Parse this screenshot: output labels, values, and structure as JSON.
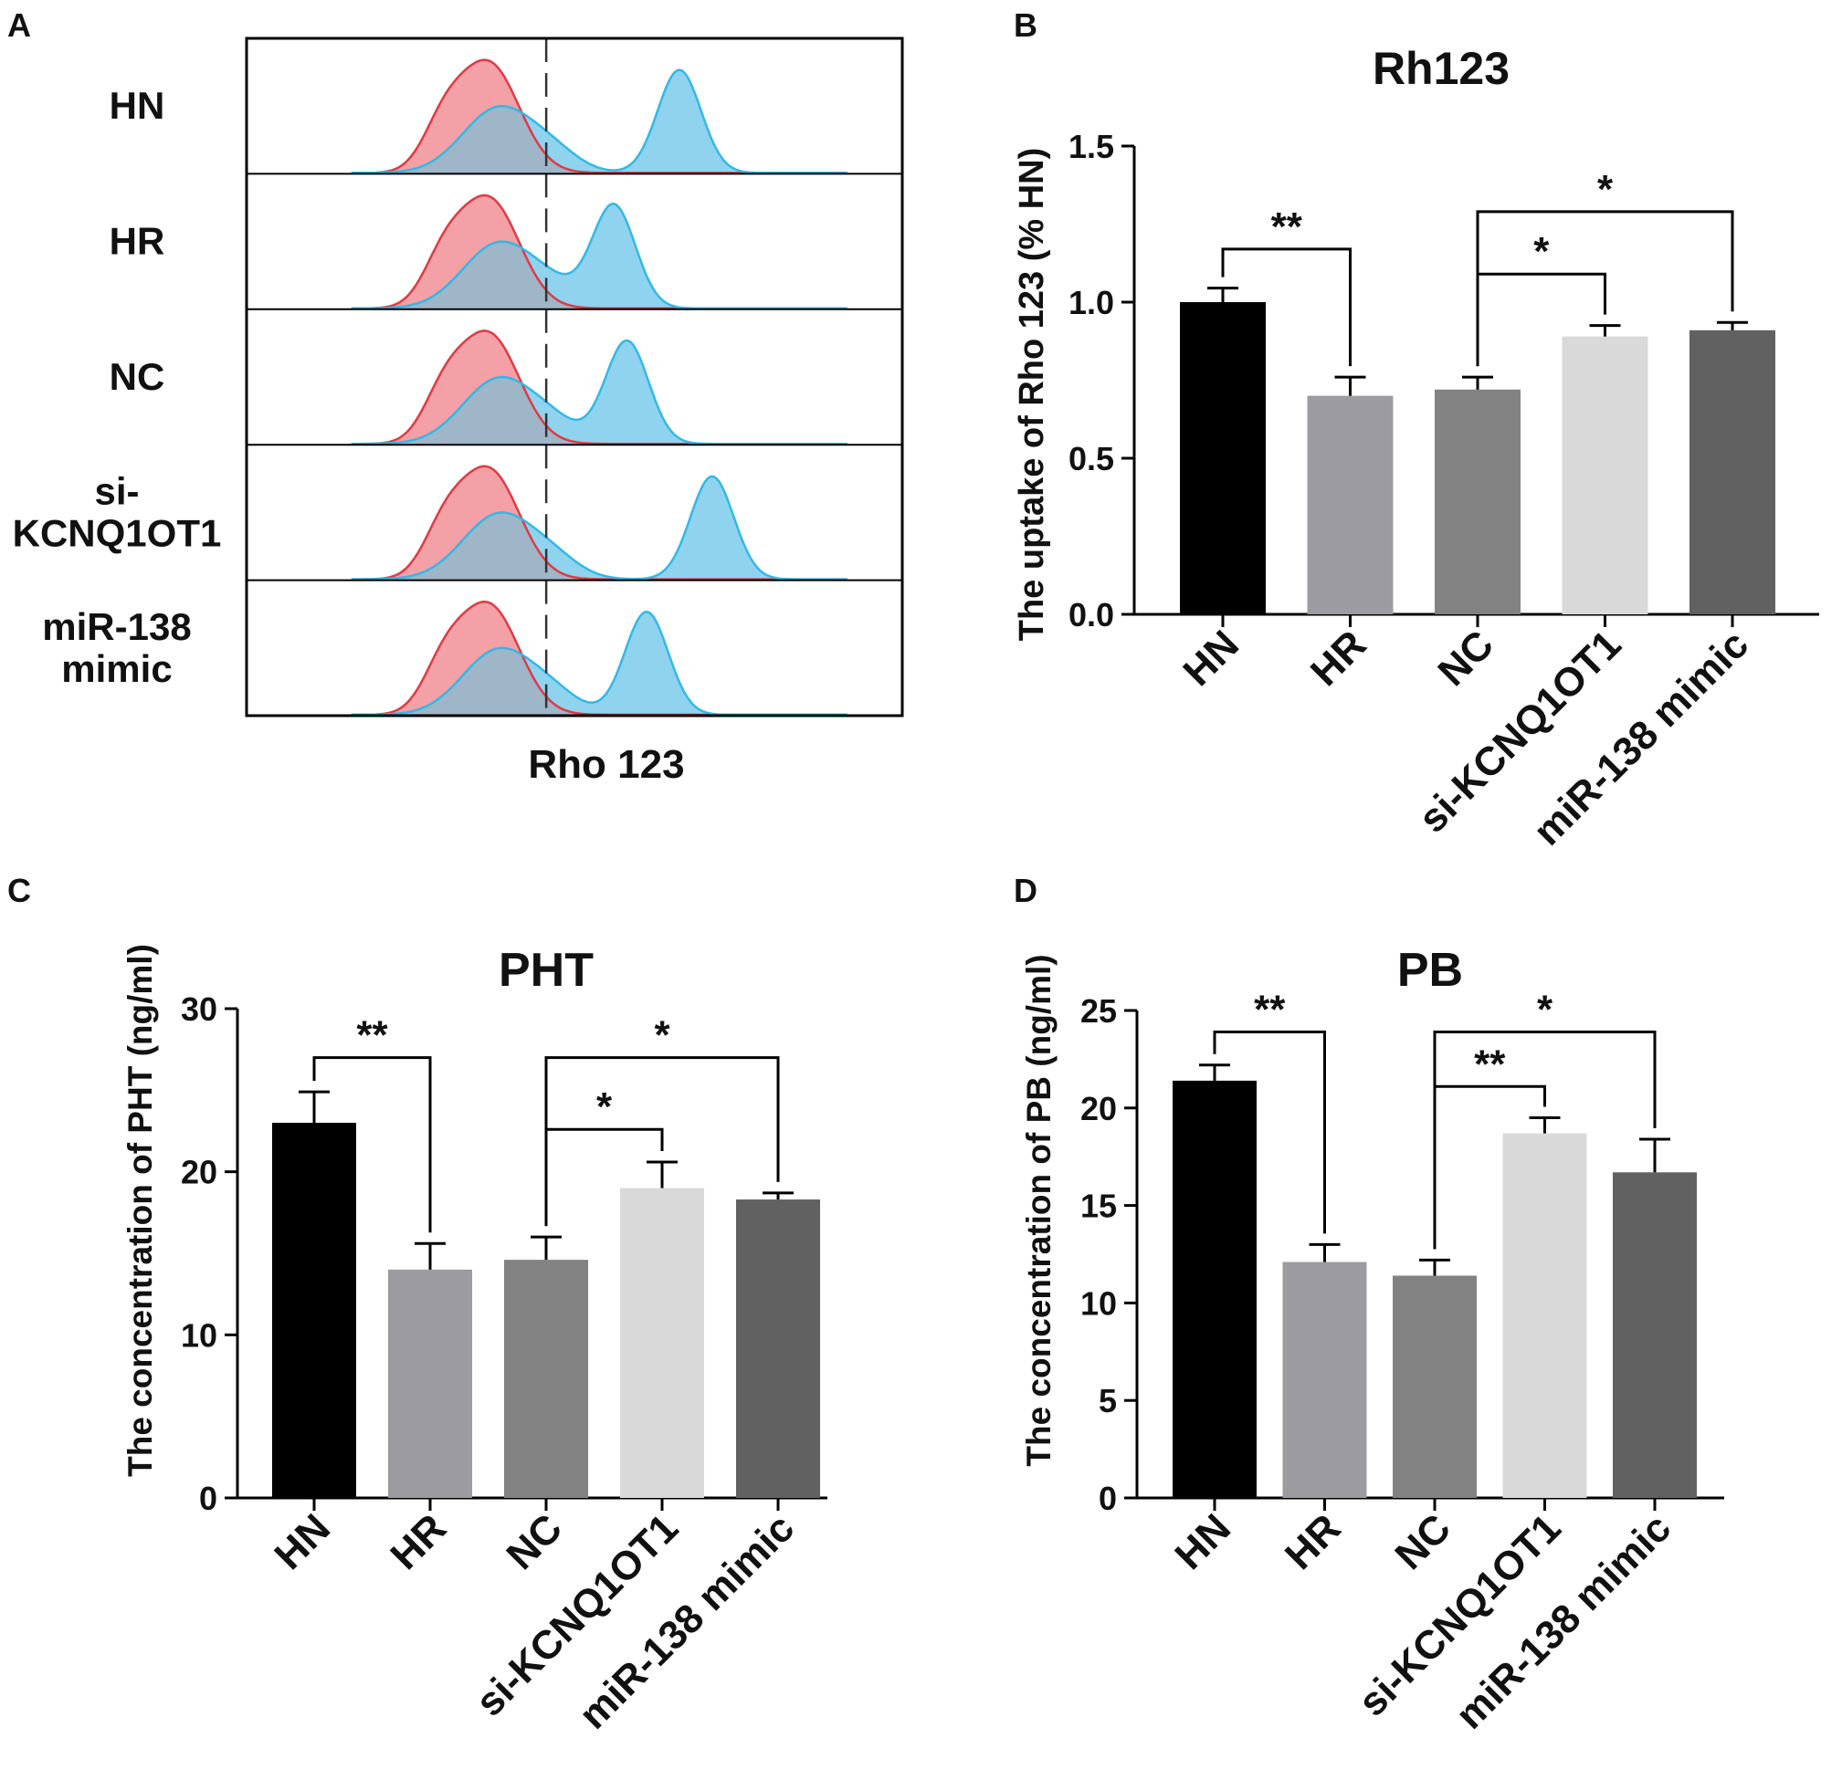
{
  "panel_a": {
    "letter": "A",
    "xlabel": "Rho 123",
    "rows": [
      {
        "label_lines": [
          "HN"
        ],
        "blue_second_peak": 66
      },
      {
        "label_lines": [
          "HR"
        ],
        "blue_second_peak": 56
      },
      {
        "label_lines": [
          "NC"
        ],
        "blue_second_peak": 58
      },
      {
        "label_lines": [
          "si-",
          "KCNQ1OT1"
        ],
        "blue_second_peak": 71
      },
      {
        "label_lines": [
          "miR-138",
          "mimic"
        ],
        "blue_second_peak": 61
      }
    ],
    "colors": {
      "red_fill": "#f3a0a6",
      "red_line": "#e03a44",
      "blue_fill": "#8fd3ef",
      "blue_line": "#33b8e6",
      "overlap": "#9fb5c8"
    }
  },
  "chart_data": [
    {
      "type": "bar",
      "panel": "B",
      "title": "Rh123",
      "ylabel": "The uptake of Rho 123 (% HN)",
      "xlabel": "",
      "categories": [
        "HN",
        "HR",
        "NC",
        "si-KCNQ1OT1",
        "miR-138 mimic"
      ],
      "values": [
        1.0,
        0.7,
        0.72,
        0.89,
        0.91
      ],
      "errors": [
        0.045,
        0.06,
        0.04,
        0.035,
        0.025
      ],
      "ylim": [
        0,
        1.5
      ],
      "yticks": [
        0,
        0.5,
        1.0,
        1.5
      ],
      "ytick_labels": [
        "0.0",
        "0.5",
        "1.0",
        "1.5"
      ],
      "bar_colors": [
        "#000000",
        "#9c9ca0",
        "#828282",
        "#d9d9d9",
        "#616161"
      ],
      "significance": [
        {
          "from": 0,
          "to": 1,
          "label": "**",
          "level": 1.17
        },
        {
          "from": 2,
          "to": 3,
          "label": "*",
          "level": 1.09
        },
        {
          "from": 2,
          "to": 4,
          "label": "*",
          "level": 1.29
        }
      ]
    },
    {
      "type": "bar",
      "panel": "C",
      "title": "PHT",
      "ylabel": "The  concentration of PHT (ng/ml)",
      "xlabel": "",
      "categories": [
        "HN",
        "HR",
        "NC",
        "si-KCNQ1OT1",
        "miR-138 mimic"
      ],
      "values": [
        23.0,
        14.0,
        14.6,
        19.0,
        18.3
      ],
      "errors": [
        1.9,
        1.6,
        1.4,
        1.6,
        0.4
      ],
      "ylim": [
        0,
        30
      ],
      "yticks": [
        0,
        10,
        20,
        30
      ],
      "ytick_labels": [
        "0",
        "10",
        "20",
        "30"
      ],
      "bar_colors": [
        "#000000",
        "#9c9ca0",
        "#828282",
        "#d9d9d9",
        "#616161"
      ],
      "significance": [
        {
          "from": 0,
          "to": 1,
          "label": "**",
          "level": 27.0
        },
        {
          "from": 2,
          "to": 3,
          "label": "*",
          "level": 22.6
        },
        {
          "from": 2,
          "to": 4,
          "label": "*",
          "level": 27.0
        }
      ]
    },
    {
      "type": "bar",
      "panel": "D",
      "title": "PB",
      "ylabel": "The  concentration of PB (ng/ml)",
      "xlabel": "",
      "categories": [
        "HN",
        "HR",
        "NC",
        "si-KCNQ1OT1",
        "miR-138 mimic"
      ],
      "values": [
        21.4,
        12.1,
        11.4,
        18.7,
        16.7
      ],
      "errors": [
        0.8,
        0.9,
        0.8,
        0.8,
        1.7
      ],
      "ylim": [
        0,
        25
      ],
      "yticks": [
        0,
        5,
        10,
        15,
        20,
        25
      ],
      "ytick_labels": [
        "0",
        "5",
        "10",
        "15",
        "20",
        "25"
      ],
      "bar_colors": [
        "#000000",
        "#9c9ca0",
        "#828282",
        "#d9d9d9",
        "#616161"
      ],
      "significance": [
        {
          "from": 0,
          "to": 1,
          "label": "**",
          "level": 23.9
        },
        {
          "from": 2,
          "to": 3,
          "label": "**",
          "level": 21.1
        },
        {
          "from": 2,
          "to": 4,
          "label": "*",
          "level": 23.9
        }
      ]
    }
  ]
}
